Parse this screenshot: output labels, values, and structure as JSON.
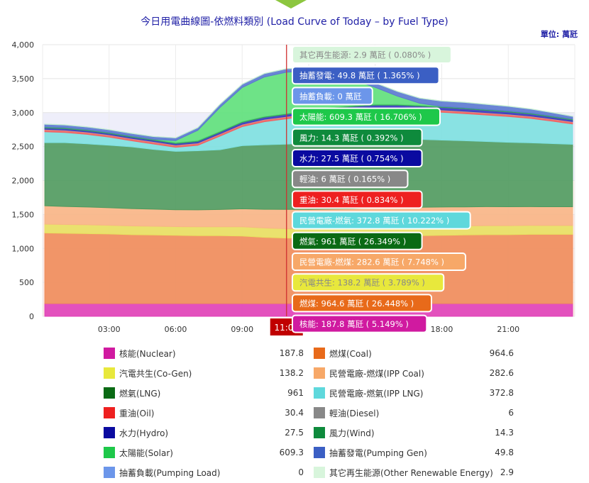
{
  "title": "今日用電曲線圖-依燃料類別 (Load Curve of Today – by Fuel Type)",
  "unit": "單位: 萬瓩",
  "chart_data": {
    "type": "area",
    "stacked": true,
    "xlabel": "",
    "ylabel": "",
    "ylim": [
      0,
      4000
    ],
    "yticks": [
      "0",
      "500",
      "1,000",
      "1,500",
      "2,000",
      "2,500",
      "3,000",
      "3,500",
      "4,000"
    ],
    "xticks": [
      "03:00",
      "06:00",
      "09:00",
      "11:00",
      "18:00",
      "21:00"
    ],
    "x": [
      0.1,
      1,
      2,
      3,
      4,
      5,
      6,
      7,
      8,
      9,
      10,
      11,
      12,
      13,
      14,
      15,
      16,
      17,
      18,
      19,
      20,
      21,
      22,
      23,
      23.9
    ],
    "grid": true,
    "crosshair_label": "11:00",
    "series": [
      {
        "name": "核能(Nuclear)",
        "color": "#e040b8",
        "values": [
          188,
          188,
          188,
          188,
          188,
          188,
          188,
          188,
          188,
          188,
          188,
          188,
          188,
          188,
          188,
          188,
          188,
          188,
          188,
          188,
          188,
          188,
          188,
          188,
          188
        ]
      },
      {
        "name": "燃煤(Coal)",
        "color": "#ef8c5a",
        "values": [
          1040,
          1035,
          1030,
          1025,
          1015,
          1010,
          1005,
          1000,
          1000,
          995,
          975,
          965,
          965,
          970,
          975,
          985,
          995,
          1000,
          1005,
          1010,
          1015,
          1015,
          1020,
          1020,
          1020
        ]
      },
      {
        "name": "汽電共生(Co-Gen)",
        "color": "#e8e060",
        "values": [
          130,
          130,
          130,
          128,
          128,
          128,
          128,
          130,
          130,
          135,
          138,
          138,
          138,
          138,
          138,
          138,
          136,
          135,
          134,
          133,
          132,
          132,
          131,
          130,
          130
        ]
      },
      {
        "name": "民營電廠-燃煤(IPP Coal)",
        "color": "#f8b585",
        "values": [
          270,
          265,
          262,
          258,
          255,
          252,
          248,
          250,
          255,
          265,
          275,
          283,
          283,
          283,
          283,
          283,
          283,
          283,
          283,
          280,
          280,
          278,
          276,
          275,
          275
        ]
      },
      {
        "name": "燃氣(LNG)",
        "color": "#4f9a5e",
        "values": [
          930,
          940,
          930,
          920,
          910,
          880,
          860,
          870,
          880,
          930,
          950,
          961,
          980,
          990,
          1000,
          1010,
          1010,
          1000,
          985,
          975,
          960,
          950,
          940,
          930,
          920
        ]
      },
      {
        "name": "民營電廠-燃氣(IPP LNG)",
        "color": "#7de0e0",
        "values": [
          160,
          150,
          140,
          120,
          90,
          80,
          60,
          80,
          200,
          280,
          340,
          373,
          400,
          430,
          440,
          440,
          430,
          420,
          410,
          400,
          390,
          380,
          360,
          330,
          300
        ]
      },
      {
        "name": "重油(Oil)",
        "color": "#f06060",
        "values": [
          30,
          30,
          30,
          30,
          30,
          30,
          30,
          30,
          30,
          30,
          30,
          30,
          30,
          30,
          30,
          30,
          30,
          30,
          30,
          30,
          30,
          30,
          30,
          30,
          30
        ]
      },
      {
        "name": "輕油(Diesel)",
        "color": "#aaaaaa",
        "values": [
          6,
          6,
          6,
          6,
          6,
          6,
          6,
          6,
          6,
          6,
          6,
          6,
          6,
          6,
          6,
          6,
          6,
          6,
          6,
          6,
          6,
          6,
          6,
          6,
          6
        ]
      },
      {
        "name": "水力(Hydro)",
        "color": "#3838c0",
        "values": [
          20,
          20,
          18,
          18,
          18,
          18,
          18,
          20,
          22,
          25,
          27,
          28,
          28,
          28,
          28,
          28,
          30,
          32,
          35,
          35,
          32,
          30,
          28,
          25,
          22
        ]
      },
      {
        "name": "風力(Wind)",
        "color": "#37a060",
        "values": [
          15,
          15,
          15,
          15,
          15,
          15,
          15,
          15,
          15,
          15,
          15,
          14,
          14,
          14,
          14,
          14,
          14,
          14,
          14,
          14,
          14,
          14,
          14,
          14,
          14
        ]
      },
      {
        "name": "太陽能(Solar)",
        "color": "#5ee07a",
        "values": [
          0,
          0,
          0,
          0,
          0,
          0,
          30,
          150,
          350,
          500,
          580,
          609,
          580,
          500,
          380,
          250,
          120,
          30,
          0,
          0,
          0,
          0,
          0,
          0,
          0
        ]
      },
      {
        "name": "抽蓄發電(Pumping Gen)",
        "color": "#5a78d0",
        "values": [
          40,
          40,
          40,
          40,
          40,
          40,
          40,
          40,
          45,
          48,
          50,
          50,
          50,
          55,
          60,
          65,
          70,
          75,
          80,
          80,
          75,
          70,
          60,
          50,
          40
        ]
      },
      {
        "name": "抽蓄負載(Pumping Load)",
        "color": "#8fb4f0",
        "values": [
          0,
          0,
          0,
          0,
          0,
          0,
          0,
          0,
          0,
          0,
          0,
          0,
          0,
          0,
          0,
          0,
          0,
          0,
          0,
          0,
          0,
          0,
          0,
          0,
          0
        ]
      },
      {
        "name": "其它再生能源(Other Renewable Energy)",
        "color": "#c8f0d0",
        "values": [
          3,
          3,
          3,
          3,
          3,
          3,
          3,
          3,
          3,
          3,
          3,
          3,
          3,
          3,
          3,
          3,
          3,
          3,
          3,
          3,
          3,
          3,
          3,
          3,
          3
        ]
      }
    ],
    "tooltip": [
      {
        "text": "其它再生能源: 2.9 萬瓩 ( 0.080% )",
        "bg": "#d8f5dc",
        "fg": "#888888"
      },
      {
        "text": "抽蓄發電: 49.8 萬瓩 ( 1.365% )",
        "bg": "#3b5fc4",
        "fg": "#ffffff"
      },
      {
        "text": "抽蓄負載: 0 萬瓩",
        "bg": "#6c96ea",
        "fg": "#ffffff"
      },
      {
        "text": "太陽能: 609.3 萬瓩 ( 16.706% )",
        "bg": "#1ec84a",
        "fg": "#ffffff"
      },
      {
        "text": "風力: 14.3 萬瓩 ( 0.392% )",
        "bg": "#0e8a3c",
        "fg": "#ffffff"
      },
      {
        "text": "水力: 27.5 萬瓩 ( 0.754% )",
        "bg": "#0a0aa0",
        "fg": "#ffffff"
      },
      {
        "text": "輕油: 6 萬瓩 ( 0.165% )",
        "bg": "#888888",
        "fg": "#ffffff"
      },
      {
        "text": "重油: 30.4 萬瓩 ( 0.834% )",
        "bg": "#ee2020",
        "fg": "#ffffff"
      },
      {
        "text": "民營電廠-燃氣: 372.8 萬瓩 ( 10.222% )",
        "bg": "#5ed8dc",
        "fg": "#ffffff"
      },
      {
        "text": "燃氣: 961 萬瓩 ( 26.349% )",
        "bg": "#0a6a14",
        "fg": "#ffffff"
      },
      {
        "text": "民營電廠-燃煤: 282.6 萬瓩 ( 7.748% )",
        "bg": "#f7a868",
        "fg": "#ffffff"
      },
      {
        "text": "汽電共生: 138.2 萬瓩 ( 3.789% )",
        "bg": "#e8e83c",
        "fg": "#888888"
      },
      {
        "text": "燃煤: 964.6 萬瓩 ( 26.448% )",
        "bg": "#e86a1a",
        "fg": "#ffffff"
      },
      {
        "text": "核能: 187.8 萬瓩 ( 5.149% )",
        "bg": "#d01aa0",
        "fg": "#ffffff"
      }
    ]
  },
  "legend": [
    {
      "name": "核能(Nuclear)",
      "color": "#d01aa0",
      "value": "187.8"
    },
    {
      "name": "燃煤(Coal)",
      "color": "#e86a1a",
      "value": "964.6"
    },
    {
      "name": "汽電共生(Co-Gen)",
      "color": "#e8e83c",
      "value": "138.2"
    },
    {
      "name": "民營電廠-燃煤(IPP Coal)",
      "color": "#f7a868",
      "value": "282.6"
    },
    {
      "name": "燃氣(LNG)",
      "color": "#0a6a14",
      "value": "961"
    },
    {
      "name": "民營電廠-燃氣(IPP LNG)",
      "color": "#5ed8dc",
      "value": "372.8"
    },
    {
      "name": "重油(Oil)",
      "color": "#ee2020",
      "value": "30.4"
    },
    {
      "name": "輕油(Diesel)",
      "color": "#888888",
      "value": "6"
    },
    {
      "name": "水力(Hydro)",
      "color": "#0a0aa0",
      "value": "27.5"
    },
    {
      "name": "風力(Wind)",
      "color": "#0e8a3c",
      "value": "14.3"
    },
    {
      "name": "太陽能(Solar)",
      "color": "#1ec84a",
      "value": "609.3"
    },
    {
      "name": "抽蓄發電(Pumping Gen)",
      "color": "#3b5fc4",
      "value": "49.8"
    },
    {
      "name": "抽蓄負載(Pumping Load)",
      "color": "#6c96ea",
      "value": "0"
    },
    {
      "name": "其它再生能源(Other Renewable Energy)",
      "color": "#d8f5dc",
      "value": "2.9"
    }
  ]
}
